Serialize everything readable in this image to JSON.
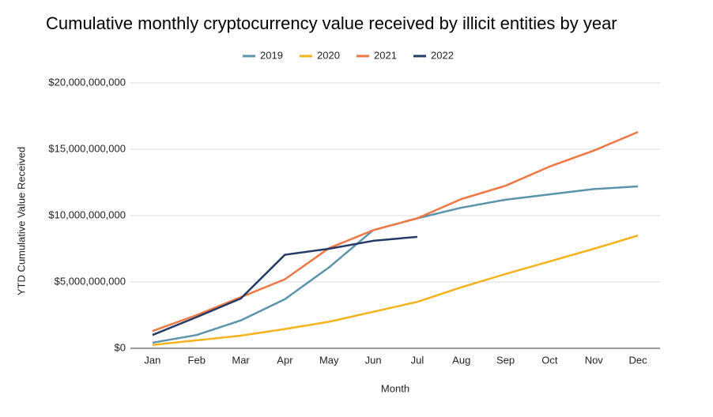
{
  "chart_data": {
    "type": "line",
    "title": "Cumulative monthly cryptocurrency value received by illicit entities by year",
    "xlabel": "Month",
    "ylabel": "YTD Cumulative Value Received",
    "categories": [
      "Jan",
      "Feb",
      "Mar",
      "Apr",
      "May",
      "Jun",
      "Jul",
      "Aug",
      "Sep",
      "Oct",
      "Nov",
      "Dec"
    ],
    "series": [
      {
        "name": "2019",
        "color": "#5b93ab",
        "values": [
          420000000,
          1000000000,
          2100000000,
          3700000000,
          6100000000,
          8900000000,
          9800000000,
          10600000000,
          11200000000,
          11600000000,
          12000000000,
          12200000000
        ]
      },
      {
        "name": "2020",
        "color": "#f5b21b",
        "values": [
          250000000,
          600000000,
          950000000,
          1450000000,
          2000000000,
          2750000000,
          3500000000,
          4600000000,
          5600000000,
          6550000000,
          7500000000,
          8500000000
        ]
      },
      {
        "name": "2021",
        "color": "#ef7744",
        "values": [
          1300000000,
          2500000000,
          3850000000,
          5200000000,
          7550000000,
          8900000000,
          9800000000,
          11250000000,
          12250000000,
          13700000000,
          14900000000,
          16300000000
        ]
      },
      {
        "name": "2022",
        "color": "#263a66",
        "values": [
          1000000000,
          2350000000,
          3750000000,
          7050000000,
          7500000000,
          8100000000,
          8400000000,
          null,
          null,
          null,
          null,
          null
        ]
      }
    ],
    "ylim": [
      0,
      20000000000
    ],
    "yticks": [
      {
        "value": 0,
        "label": "$0"
      },
      {
        "value": 5000000000,
        "label": "$5,000,000,000"
      },
      {
        "value": 10000000000,
        "label": "$10,000,000,000"
      },
      {
        "value": 15000000000,
        "label": "$15,000,000,000"
      },
      {
        "value": 20000000000,
        "label": "$20,000,000,000"
      }
    ],
    "grid": true,
    "legend": "top"
  }
}
